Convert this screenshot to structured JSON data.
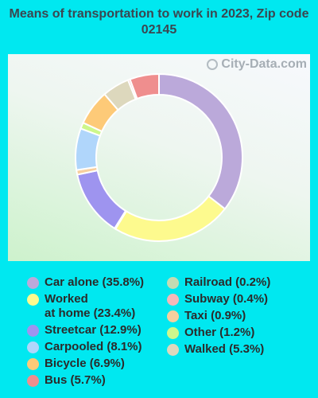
{
  "title": "Means of transportation to work in 2023, Zip code 02145",
  "watermark": "City-Data.com",
  "chart_data": {
    "type": "pie",
    "style": "donut",
    "start_angle_deg": 0,
    "direction": "clockwise",
    "series": [
      {
        "name": "Car alone",
        "value": 35.8,
        "color": "#bba9da",
        "label": "Car alone (35.8%)"
      },
      {
        "name": "Worked at home",
        "value": 23.4,
        "color": "#fdfa8e",
        "label": "Worked\nat home (23.4%)"
      },
      {
        "name": "Railroad",
        "value": 0.2,
        "color": "#c4dbb2",
        "label": "Railroad (0.2%)"
      },
      {
        "name": "Streetcar",
        "value": 12.9,
        "color": "#9e94ef",
        "label": "Streetcar (12.9%)"
      },
      {
        "name": "Taxi",
        "value": 0.9,
        "color": "#f7cf9e",
        "label": "Taxi (0.9%)"
      },
      {
        "name": "Carpooled",
        "value": 8.1,
        "color": "#b0d6fb",
        "label": "Carpooled (8.1%)"
      },
      {
        "name": "Other",
        "value": 1.2,
        "color": "#cdf78c",
        "label": "Other (1.2%)"
      },
      {
        "name": "Bicycle",
        "value": 6.9,
        "color": "#fdca78",
        "label": "Bicycle (6.9%)"
      },
      {
        "name": "Walked",
        "value": 5.3,
        "color": "#ddd8bd",
        "label": "Walked (5.3%)"
      },
      {
        "name": "Subway",
        "value": 0.4,
        "color": "#f4b8b9",
        "label": "Subway (0.4%)"
      },
      {
        "name": "Bus",
        "value": 5.7,
        "color": "#ef8e8e",
        "label": "Bus (5.7%)"
      }
    ],
    "legend": {
      "col1": [
        0,
        1,
        3,
        5,
        7,
        10
      ],
      "col2": [
        2,
        9,
        4,
        6,
        8
      ]
    }
  }
}
